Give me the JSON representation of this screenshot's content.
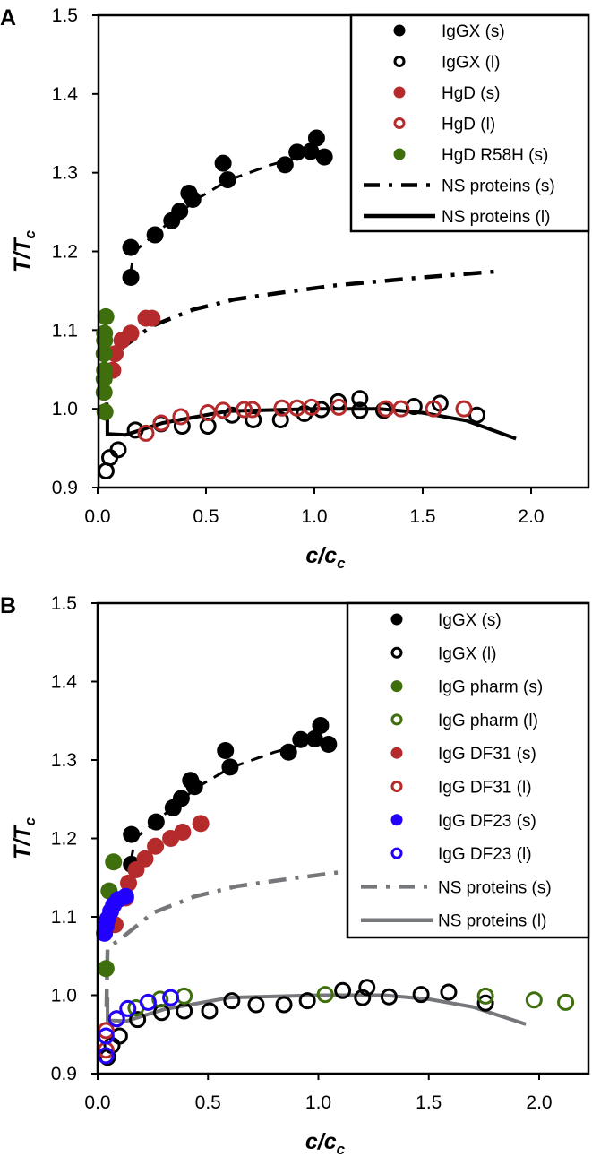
{
  "chart_data": [
    {
      "panel_label": "A",
      "type": "scatter",
      "xlabel": {
        "main": "c/c",
        "sub": "c"
      },
      "ylabel": {
        "main": "T/T",
        "sub": "c"
      },
      "xlim": [
        0,
        2.25
      ],
      "ylim": [
        0.9,
        1.5
      ],
      "xticks": [
        "0.0",
        "0.5",
        "1.0",
        "1.5",
        "2.0"
      ],
      "xtick_values": [
        0,
        0.5,
        1.0,
        1.5,
        2.0
      ],
      "yticks": [
        "0.9",
        "1.0",
        "1.1",
        "1.2",
        "1.3",
        "1.4",
        "1.5"
      ],
      "ytick_values": [
        0.9,
        1.0,
        1.1,
        1.2,
        1.3,
        1.4,
        1.5
      ],
      "legend_position": "top-right",
      "fits": [
        {
          "style": "dashed",
          "color": "#000000",
          "points": [
            [
              0.15,
              1.17
            ],
            [
              0.17,
              1.2
            ],
            [
              0.3,
              1.23
            ],
            [
              0.45,
              1.265
            ],
            [
              0.6,
              1.29
            ],
            [
              0.8,
              1.31
            ],
            [
              1.0,
              1.325
            ],
            [
              1.05,
              1.33
            ]
          ]
        }
      ],
      "series": [
        {
          "name": "IgGX (s)",
          "marker": "filled",
          "color": "#000000",
          "points": [
            [
              0.153,
              1.167
            ],
            [
              0.153,
              1.205
            ],
            [
              0.265,
              1.221
            ],
            [
              0.342,
              1.239
            ],
            [
              0.379,
              1.251
            ],
            [
              0.421,
              1.274
            ],
            [
              0.439,
              1.266
            ],
            [
              0.579,
              1.312
            ],
            [
              0.6,
              1.291
            ],
            [
              0.865,
              1.31
            ],
            [
              0.92,
              1.326
            ],
            [
              0.983,
              1.327
            ],
            [
              1.01,
              1.344
            ],
            [
              1.046,
              1.32
            ]
          ]
        },
        {
          "name": "IgGX (l)",
          "marker": "open",
          "color": "#000000",
          "points": [
            [
              0.039,
              0.921
            ],
            [
              0.056,
              0.938
            ],
            [
              0.095,
              0.948
            ],
            [
              0.174,
              0.973
            ],
            [
              0.293,
              0.981
            ],
            [
              0.39,
              0.978
            ],
            [
              0.509,
              0.978
            ],
            [
              0.62,
              0.992
            ],
            [
              0.718,
              0.986
            ],
            [
              0.844,
              0.986
            ],
            [
              0.954,
              0.994
            ],
            [
              1.032,
              0.999
            ],
            [
              1.11,
              1.009
            ],
            [
              1.21,
              1.013
            ],
            [
              1.21,
              0.998
            ],
            [
              1.32,
              0.998
            ],
            [
              1.46,
              1.003
            ],
            [
              1.58,
              1.007
            ],
            [
              1.75,
              0.992
            ]
          ]
        },
        {
          "name": "HgD (s)",
          "marker": "filled",
          "color": "#b52b2b",
          "points": [
            [
              0.07,
              1.049
            ],
            [
              0.081,
              1.07
            ],
            [
              0.112,
              1.087
            ],
            [
              0.153,
              1.096
            ],
            [
              0.223,
              1.115
            ],
            [
              0.251,
              1.115
            ]
          ]
        },
        {
          "name": "HgD (l)",
          "marker": "open",
          "color": "#b52b2b",
          "points": [
            [
              0.223,
              0.969
            ],
            [
              0.293,
              0.982
            ],
            [
              0.384,
              0.99
            ],
            [
              0.509,
              0.995
            ],
            [
              0.579,
              0.998
            ],
            [
              0.676,
              0.999
            ],
            [
              0.714,
              0.999
            ],
            [
              0.851,
              1.001
            ],
            [
              0.92,
              1.001
            ],
            [
              0.987,
              1.002
            ],
            [
              1.113,
              1.002
            ],
            [
              1.33,
              1.0
            ],
            [
              1.4,
              1.0
            ],
            [
              1.55,
              1.0
            ],
            [
              1.69,
              1.0
            ]
          ]
        },
        {
          "name": "HgD R58H (s)",
          "marker": "filled",
          "color": "#3f6e0c",
          "points": [
            [
              0.038,
              1.117
            ],
            [
              0.032,
              1.096
            ],
            [
              0.032,
              1.087
            ],
            [
              0.03,
              1.07
            ],
            [
              0.032,
              1.049
            ],
            [
              0.03,
              1.038
            ],
            [
              0.03,
              1.021
            ],
            [
              0.034,
              0.996
            ]
          ]
        },
        {
          "name": "NS proteins (s)",
          "marker": "line",
          "style": "dashdot",
          "color": "#000000",
          "points": [
            [
              0.04,
              0.985
            ],
            [
              0.045,
              1.06
            ],
            [
              0.1,
              1.075
            ],
            [
              0.25,
              1.105
            ],
            [
              0.44,
              1.126
            ],
            [
              0.63,
              1.139
            ],
            [
              0.83,
              1.147
            ],
            [
              1.1,
              1.157
            ],
            [
              1.5,
              1.167
            ],
            [
              1.86,
              1.175
            ]
          ]
        },
        {
          "name": "NS proteins (l)",
          "marker": "line",
          "style": "solid",
          "color": "#000000",
          "points": [
            [
              0.045,
              0.997
            ],
            [
              0.045,
              0.968
            ],
            [
              0.13,
              0.967
            ],
            [
              0.3,
              0.982
            ],
            [
              0.6,
              0.997
            ],
            [
              1.0,
              1.0
            ],
            [
              1.3,
              1.0
            ],
            [
              1.5,
              0.995
            ],
            [
              1.7,
              0.985
            ],
            [
              1.93,
              0.962
            ]
          ]
        }
      ]
    },
    {
      "panel_label": "B",
      "type": "scatter",
      "xlabel": {
        "main": "c/c",
        "sub": "c"
      },
      "ylabel": {
        "main": "T/T",
        "sub": "c"
      },
      "xlim": [
        0,
        2.22
      ],
      "ylim": [
        0.9,
        1.5
      ],
      "xticks": [
        "0.0",
        "0.5",
        "1.0",
        "1.5",
        "2.0"
      ],
      "xtick_values": [
        0,
        0.5,
        1.0,
        1.5,
        2.0
      ],
      "yticks": [
        "0.9",
        "1.0",
        "1.1",
        "1.2",
        "1.3",
        "1.4",
        "1.5"
      ],
      "ytick_values": [
        0.9,
        1.0,
        1.1,
        1.2,
        1.3,
        1.4,
        1.5
      ],
      "legend_position": "top-right",
      "fits": [
        {
          "style": "dashed",
          "color": "#000000",
          "points": [
            [
              0.15,
              1.17
            ],
            [
              0.17,
              1.2
            ],
            [
              0.3,
              1.23
            ],
            [
              0.45,
              1.265
            ],
            [
              0.6,
              1.29
            ],
            [
              0.8,
              1.31
            ],
            [
              1.0,
              1.325
            ],
            [
              1.05,
              1.33
            ]
          ]
        }
      ],
      "series": [
        {
          "name": "IgGX (s)",
          "marker": "filled",
          "color": "#000000",
          "points": [
            [
              0.153,
              1.167
            ],
            [
              0.153,
              1.205
            ],
            [
              0.265,
              1.221
            ],
            [
              0.342,
              1.239
            ],
            [
              0.379,
              1.251
            ],
            [
              0.421,
              1.274
            ],
            [
              0.439,
              1.266
            ],
            [
              0.579,
              1.312
            ],
            [
              0.6,
              1.291
            ],
            [
              0.865,
              1.31
            ],
            [
              0.92,
              1.326
            ],
            [
              0.983,
              1.327
            ],
            [
              1.01,
              1.344
            ],
            [
              1.046,
              1.32
            ]
          ]
        },
        {
          "name": "IgGX (l)",
          "marker": "open",
          "color": "#000000",
          "points": [
            [
              0.045,
              0.921
            ],
            [
              0.065,
              0.936
            ],
            [
              0.099,
              0.948
            ],
            [
              0.181,
              0.969
            ],
            [
              0.29,
              0.978
            ],
            [
              0.392,
              0.98
            ],
            [
              0.507,
              0.98
            ],
            [
              0.608,
              0.993
            ],
            [
              0.718,
              0.988
            ],
            [
              0.844,
              0.988
            ],
            [
              0.95,
              0.993
            ],
            [
              1.11,
              1.006
            ],
            [
              1.22,
              1.01
            ],
            [
              1.2,
              0.997
            ],
            [
              1.32,
              0.998
            ],
            [
              1.465,
              1.001
            ],
            [
              1.59,
              1.004
            ],
            [
              1.757,
              0.99
            ]
          ]
        },
        {
          "name": "IgG pharm (s)",
          "marker": "filled",
          "color": "#3f6e0c",
          "points": [
            [
              0.072,
              1.17
            ],
            [
              0.052,
              1.133
            ],
            [
              0.038,
              1.034
            ]
          ]
        },
        {
          "name": "IgG pharm (l)",
          "marker": "open",
          "color": "#3f6e0c",
          "points": [
            [
              0.174,
              0.984
            ],
            [
              0.283,
              0.995
            ],
            [
              0.392,
              0.999
            ],
            [
              1.031,
              1.001
            ],
            [
              1.757,
              0.999
            ],
            [
              1.977,
              0.994
            ],
            [
              2.12,
              0.991
            ]
          ]
        },
        {
          "name": "IgG DF31 (s)",
          "marker": "filled",
          "color": "#b52b2b",
          "points": [
            [
              0.079,
              1.09
            ],
            [
              0.127,
              1.124
            ],
            [
              0.14,
              1.143
            ],
            [
              0.174,
              1.16
            ],
            [
              0.215,
              1.174
            ],
            [
              0.262,
              1.19
            ],
            [
              0.331,
              1.2
            ],
            [
              0.385,
              1.208
            ],
            [
              0.467,
              1.219
            ]
          ]
        },
        {
          "name": "IgG DF31 (l)",
          "marker": "open",
          "color": "#b52b2b",
          "points": [
            [
              0.038,
              0.955
            ],
            [
              0.038,
              0.93
            ],
            [
              0.086,
              0.97
            ]
          ]
        },
        {
          "name": "IgG DF23 (s)",
          "marker": "filled",
          "color": "#2200ff",
          "points": [
            [
              0.031,
              1.079
            ],
            [
              0.038,
              1.088
            ],
            [
              0.045,
              1.097
            ],
            [
              0.059,
              1.107
            ],
            [
              0.072,
              1.115
            ],
            [
              0.093,
              1.122
            ],
            [
              0.127,
              1.126
            ]
          ]
        },
        {
          "name": "IgG DF23 (l)",
          "marker": "open",
          "color": "#2200ff",
          "points": [
            [
              0.038,
              0.948
            ],
            [
              0.037,
              0.923
            ],
            [
              0.086,
              0.97
            ],
            [
              0.137,
              0.983
            ],
            [
              0.229,
              0.991
            ],
            [
              0.331,
              0.997
            ]
          ]
        },
        {
          "name": "NS proteins (s)",
          "marker": "line",
          "style": "dashdot",
          "color": "#76777b",
          "points": [
            [
              0.04,
              0.985
            ],
            [
              0.045,
              1.06
            ],
            [
              0.1,
              1.071
            ],
            [
              0.25,
              1.105
            ],
            [
              0.44,
              1.126
            ],
            [
              0.63,
              1.139
            ],
            [
              0.83,
              1.147
            ],
            [
              1.1,
              1.157
            ],
            [
              1.5,
              1.167
            ],
            [
              1.86,
              1.175
            ]
          ]
        },
        {
          "name": "NS proteins (l)",
          "marker": "line",
          "style": "solid",
          "color": "#76777b",
          "points": [
            [
              0.045,
              0.997
            ],
            [
              0.045,
              0.968
            ],
            [
              0.13,
              0.967
            ],
            [
              0.3,
              0.982
            ],
            [
              0.6,
              0.997
            ],
            [
              1.0,
              1.0
            ],
            [
              1.3,
              1.0
            ],
            [
              1.5,
              0.995
            ],
            [
              1.7,
              0.985
            ],
            [
              1.94,
              0.963
            ]
          ]
        }
      ]
    }
  ]
}
